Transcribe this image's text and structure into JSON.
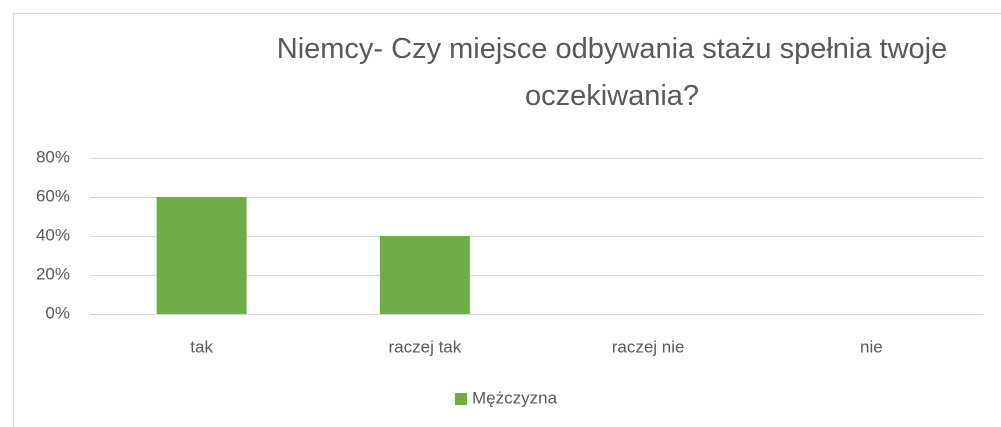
{
  "chart_data": {
    "type": "bar",
    "title": "Niemcy- Czy miejsce odbywania stażu spełnia twoje oczekiwania?",
    "categories": [
      "tak",
      "raczej tak",
      "raczej nie",
      "nie"
    ],
    "series": [
      {
        "name": "Mężczyzna",
        "color": "#70ad47",
        "values": [
          60,
          40,
          0,
          0
        ]
      }
    ],
    "ylim": [
      0,
      80
    ],
    "yticks": [
      {
        "value": 0,
        "label": "0%"
      },
      {
        "value": 20,
        "label": "20%"
      },
      {
        "value": 40,
        "label": "40%"
      },
      {
        "value": 60,
        "label": "60%"
      },
      {
        "value": 80,
        "label": "80%"
      }
    ],
    "grid": true,
    "legend": "bottom"
  }
}
